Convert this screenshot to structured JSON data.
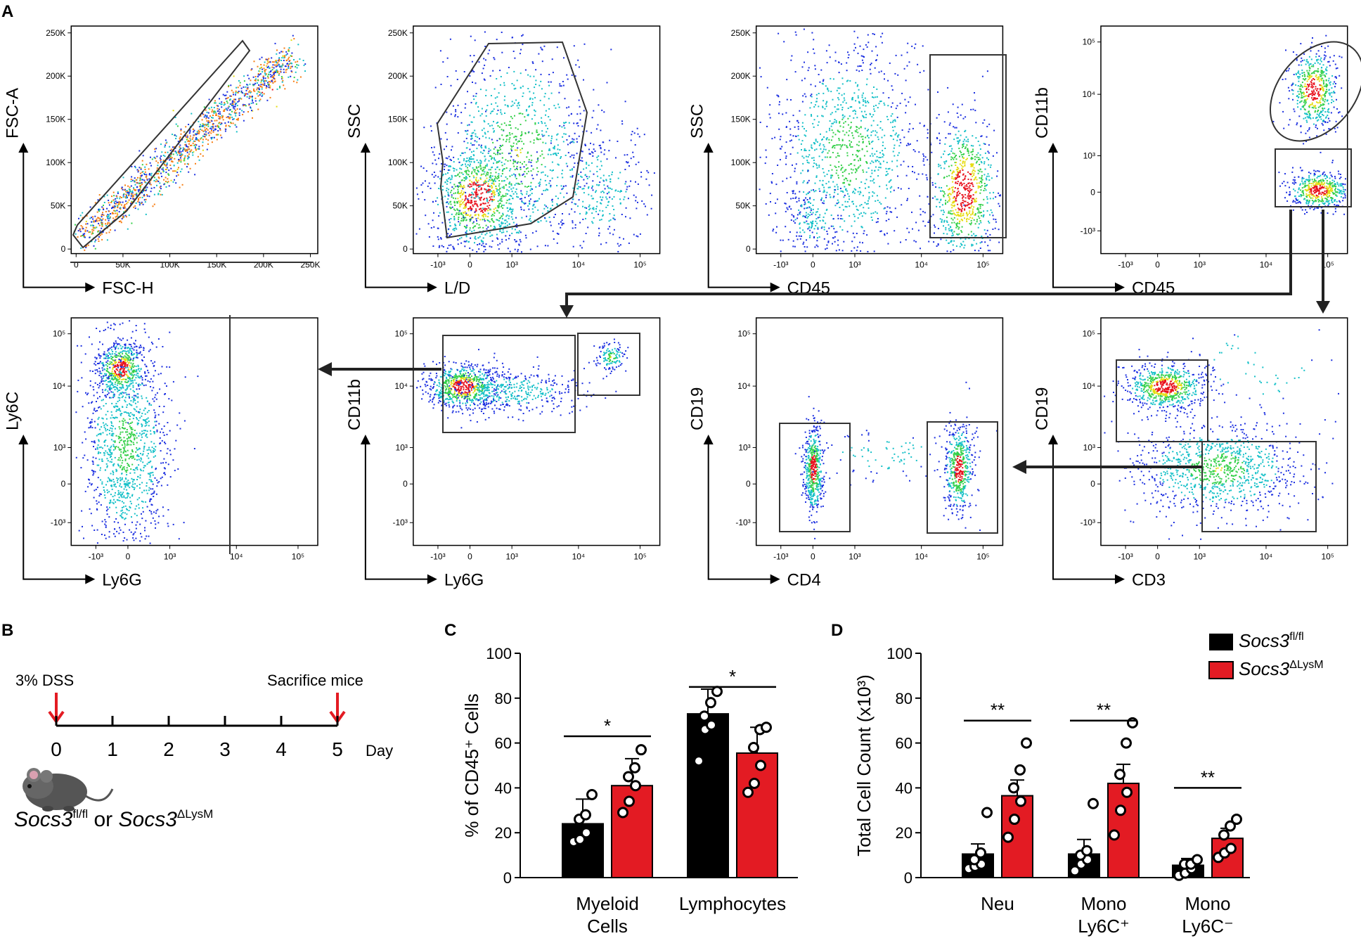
{
  "panel_labels": {
    "A": "A",
    "B": "B",
    "C": "C",
    "D": "D"
  },
  "flow": {
    "plots": [
      {
        "id": "p1",
        "x_label": "FSC-H",
        "y_label": "FSC-A",
        "x_ticks": [
          "0",
          "50K",
          "100K",
          "150K",
          "200K",
          "250K"
        ],
        "y_ticks": [
          "0",
          "50K",
          "100K",
          "150K",
          "200K",
          "250K"
        ]
      },
      {
        "id": "p2",
        "x_label": "L/D",
        "y_label": "SSC",
        "x_ticks": [
          "-10³",
          "0",
          "10³",
          "10⁴",
          "10⁵"
        ],
        "y_ticks": [
          "0",
          "50K",
          "100K",
          "150K",
          "200K",
          "250K"
        ]
      },
      {
        "id": "p3",
        "x_label": "CD45",
        "y_label": "SSC",
        "x_ticks": [
          "-10³",
          "0",
          "10³",
          "10⁴",
          "10⁵"
        ],
        "y_ticks": [
          "0",
          "50K",
          "100K",
          "150K",
          "200K",
          "250K"
        ]
      },
      {
        "id": "p4",
        "x_label": "CD45",
        "y_label": "CD11b",
        "x_ticks": [
          "-10³",
          "0",
          "10³",
          "10⁴",
          "10⁵"
        ],
        "y_ticks": [
          "-10³",
          "0",
          "10³",
          "10⁴",
          "10⁵"
        ]
      },
      {
        "id": "p5",
        "x_label": "Ly6G",
        "y_label": "Ly6C",
        "x_ticks": [
          "-10³",
          "0",
          "10³",
          "10⁴",
          "10⁵"
        ],
        "y_ticks": [
          "-10³",
          "0",
          "10³",
          "10⁴",
          "10⁵"
        ]
      },
      {
        "id": "p6",
        "x_label": "Ly6G",
        "y_label": "CD11b",
        "x_ticks": [
          "-10³",
          "0",
          "10³",
          "10⁴",
          "10⁵"
        ],
        "y_ticks": [
          "-10³",
          "0",
          "10³",
          "10⁴",
          "10⁵"
        ]
      },
      {
        "id": "p7",
        "x_label": "CD4",
        "y_label": "CD19",
        "x_ticks": [
          "-10³",
          "0",
          "10³",
          "10⁴",
          "10⁵"
        ],
        "y_ticks": [
          "-10³",
          "0",
          "10³",
          "10⁴",
          "10⁵"
        ]
      },
      {
        "id": "p8",
        "x_label": "CD3",
        "y_label": "CD19",
        "x_ticks": [
          "-10³",
          "0",
          "10³",
          "10⁴",
          "10⁵"
        ],
        "y_ticks": [
          "-10³",
          "0",
          "10³",
          "10⁴",
          "10⁵"
        ]
      }
    ]
  },
  "timeline": {
    "start_label": "3% DSS",
    "end_label": "Sacrifice mice",
    "days": [
      "0",
      "1",
      "2",
      "3",
      "4",
      "5"
    ],
    "unit": "Day",
    "mouse_lines": [
      {
        "gene": "Socs3",
        "sup": "fl/fl"
      },
      {
        "gene": "Socs3",
        "sup": "ΔLysM"
      }
    ],
    "connector": "or",
    "arrow_color": "#e31b23"
  },
  "legend": [
    {
      "gene": "Socs3",
      "sup": "fl/fl",
      "color": "#000000"
    },
    {
      "gene": "Socs3",
      "sup": "ΔLysM",
      "color": "#e31b23"
    }
  ],
  "chart_data": [
    {
      "type": "bar",
      "id": "C",
      "title": "",
      "ylabel": "% of CD45⁺ Cells",
      "ylim": [
        0,
        100
      ],
      "yticks": [
        "0",
        "20",
        "40",
        "60",
        "80",
        "100"
      ],
      "categories": [
        [
          "Myeloid",
          "Cells"
        ],
        [
          "Lymphocytes"
        ]
      ],
      "series": [
        {
          "name": "Socs3 fl/fl",
          "color": "#000000",
          "values": [
            24,
            73
          ],
          "errors": [
            11,
            11
          ],
          "points": [
            [
              16,
              17,
              20,
              26,
              28,
              37
            ],
            [
              52,
              66,
              68,
              72,
              78,
              83
            ]
          ]
        },
        {
          "name": "Socs3 ΔLysM",
          "color": "#e31b23",
          "values": [
            41,
            55.5
          ],
          "errors": [
            12,
            11.5
          ],
          "points": [
            [
              29,
              34,
              41,
              45,
              49,
              57
            ],
            [
              38,
              42,
              50,
              58,
              66,
              67
            ]
          ]
        }
      ],
      "significance": [
        "*",
        "*"
      ],
      "sig_y": [
        63,
        85
      ]
    },
    {
      "type": "bar",
      "id": "D",
      "title": "",
      "ylabel": "Total Cell Count (x10³)",
      "ylim": [
        0,
        100
      ],
      "yticks": [
        "0",
        "20",
        "40",
        "60",
        "80",
        "100"
      ],
      "categories": [
        [
          "Neu"
        ],
        [
          "Mono",
          "Ly6C⁺"
        ],
        [
          "Mono",
          "Ly6C⁻"
        ]
      ],
      "series": [
        {
          "name": "Socs3 fl/fl",
          "color": "#000000",
          "values": [
            10.5,
            10.5,
            5.5
          ],
          "errors": [
            4.5,
            6.5,
            3
          ],
          "points": [
            [
              4,
              5,
              6,
              8,
              11,
              29
            ],
            [
              3,
              6,
              8,
              10,
              12,
              33
            ],
            [
              1,
              2,
              4,
              6,
              6,
              8
            ]
          ]
        },
        {
          "name": "Socs3 ΔLysM",
          "color": "#e31b23",
          "values": [
            36.5,
            42,
            17.5
          ],
          "errors": [
            7,
            8.5,
            4.5
          ],
          "points": [
            [
              18,
              26,
              34,
              40,
              48,
              60
            ],
            [
              19,
              30,
              38,
              46,
              60,
              69
            ],
            [
              9,
              11,
              13,
              19,
              23,
              26
            ]
          ]
        }
      ],
      "significance": [
        "**",
        "**",
        "**"
      ],
      "sig_y": [
        70,
        70,
        40
      ]
    }
  ]
}
